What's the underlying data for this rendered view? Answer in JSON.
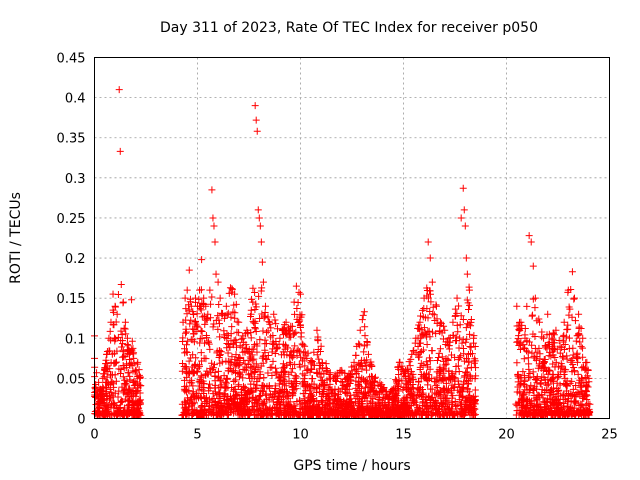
{
  "chart_data": {
    "type": "scatter",
    "title": "Day 311 of 2023, Rate Of TEC Index for receiver p050",
    "xlabel": "GPS time / hours",
    "ylabel": "ROTI / TECUs",
    "xlim": [
      0,
      25
    ],
    "ylim": [
      0,
      0.45
    ],
    "xticks": [
      0,
      5,
      10,
      15,
      20,
      25
    ],
    "xtick_labels": [
      "0",
      "5",
      "10",
      "15",
      "20",
      "25"
    ],
    "yticks": [
      0,
      0.05,
      0.1,
      0.15,
      0.2,
      0.25,
      0.3,
      0.35,
      0.4,
      0.45
    ],
    "ytick_labels": [
      "0",
      "0.05",
      "0.1",
      "0.15",
      "0.2",
      "0.25",
      "0.3",
      "0.35",
      "0.4",
      "0.45"
    ],
    "grid": true,
    "marker": "+",
    "color": "#ff0000",
    "series": [
      {
        "envelope_note": "",
        "points": [
          [
            0.0,
            0.103
          ],
          [
            0.0,
            0.075
          ],
          [
            0.1,
            0.057
          ],
          [
            0.2,
            0.045
          ],
          [
            0.3,
            0.03
          ],
          [
            0.4,
            0.05
          ],
          [
            0.5,
            0.06
          ],
          [
            0.6,
            0.08
          ],
          [
            0.7,
            0.1
          ],
          [
            0.8,
            0.12
          ],
          [
            0.9,
            0.155
          ],
          [
            1.0,
            0.14
          ],
          [
            1.1,
            0.13
          ],
          [
            1.2,
            0.41
          ],
          [
            1.25,
            0.333
          ],
          [
            1.3,
            0.167
          ],
          [
            1.4,
            0.145
          ],
          [
            1.5,
            0.12
          ],
          [
            1.6,
            0.1
          ],
          [
            1.7,
            0.08
          ],
          [
            1.8,
            0.148
          ],
          [
            1.9,
            0.075
          ],
          [
            2.0,
            0.06
          ],
          [
            2.1,
            0.07
          ],
          [
            2.2,
            0.05
          ],
          [
            4.3,
            0.12
          ],
          [
            4.4,
            0.15
          ],
          [
            4.5,
            0.16
          ],
          [
            4.6,
            0.185
          ],
          [
            4.7,
            0.14
          ],
          [
            4.8,
            0.13
          ],
          [
            4.9,
            0.15
          ],
          [
            5.0,
            0.14
          ],
          [
            5.1,
            0.16
          ],
          [
            5.2,
            0.198
          ],
          [
            5.3,
            0.15
          ],
          [
            5.4,
            0.14
          ],
          [
            5.5,
            0.13
          ],
          [
            5.6,
            0.16
          ],
          [
            5.7,
            0.285
          ],
          [
            5.75,
            0.25
          ],
          [
            5.8,
            0.24
          ],
          [
            5.85,
            0.22
          ],
          [
            5.9,
            0.18
          ],
          [
            6.0,
            0.17
          ],
          [
            6.1,
            0.15
          ],
          [
            6.2,
            0.13
          ],
          [
            6.4,
            0.14
          ],
          [
            6.6,
            0.163
          ],
          [
            6.8,
            0.155
          ],
          [
            7.0,
            0.12
          ],
          [
            7.2,
            0.1
          ],
          [
            7.4,
            0.11
          ],
          [
            7.6,
            0.13
          ],
          [
            7.8,
            0.39
          ],
          [
            7.85,
            0.372
          ],
          [
            7.9,
            0.358
          ],
          [
            7.95,
            0.26
          ],
          [
            8.0,
            0.25
          ],
          [
            8.05,
            0.24
          ],
          [
            8.1,
            0.22
          ],
          [
            8.15,
            0.195
          ],
          [
            8.2,
            0.17
          ],
          [
            8.3,
            0.14
          ],
          [
            8.5,
            0.12
          ],
          [
            8.7,
            0.13
          ],
          [
            9.0,
            0.1
          ],
          [
            9.3,
            0.12
          ],
          [
            9.5,
            0.11
          ],
          [
            9.8,
            0.165
          ],
          [
            10.0,
            0.155
          ],
          [
            10.2,
            0.09
          ],
          [
            10.5,
            0.07
          ],
          [
            10.8,
            0.11
          ],
          [
            11.0,
            0.09
          ],
          [
            11.3,
            0.06
          ],
          [
            11.6,
            0.05
          ],
          [
            12.0,
            0.06
          ],
          [
            12.3,
            0.05
          ],
          [
            12.6,
            0.07
          ],
          [
            12.9,
            0.11
          ],
          [
            13.1,
            0.133
          ],
          [
            13.3,
            0.08
          ],
          [
            13.6,
            0.05
          ],
          [
            13.9,
            0.04
          ],
          [
            14.2,
            0.03
          ],
          [
            14.5,
            0.035
          ],
          [
            14.8,
            0.07
          ],
          [
            15.1,
            0.06
          ],
          [
            15.4,
            0.08
          ],
          [
            15.6,
            0.1
          ],
          [
            15.8,
            0.12
          ],
          [
            16.0,
            0.15
          ],
          [
            16.2,
            0.22
          ],
          [
            16.3,
            0.2
          ],
          [
            16.4,
            0.17
          ],
          [
            16.6,
            0.14
          ],
          [
            16.8,
            0.12
          ],
          [
            17.0,
            0.11
          ],
          [
            17.2,
            0.1
          ],
          [
            17.4,
            0.12
          ],
          [
            17.6,
            0.15
          ],
          [
            17.8,
            0.25
          ],
          [
            17.9,
            0.287
          ],
          [
            17.95,
            0.26
          ],
          [
            18.0,
            0.24
          ],
          [
            18.05,
            0.2
          ],
          [
            18.1,
            0.18
          ],
          [
            18.2,
            0.16
          ],
          [
            18.4,
            0.1
          ],
          [
            20.5,
            0.14
          ],
          [
            20.7,
            0.12
          ],
          [
            20.9,
            0.1
          ],
          [
            21.1,
            0.228
          ],
          [
            21.2,
            0.22
          ],
          [
            21.3,
            0.19
          ],
          [
            21.4,
            0.15
          ],
          [
            21.6,
            0.12
          ],
          [
            21.8,
            0.1
          ],
          [
            22.0,
            0.13
          ],
          [
            22.2,
            0.1
          ],
          [
            22.4,
            0.11
          ],
          [
            22.6,
            0.09
          ],
          [
            22.8,
            0.12
          ],
          [
            23.0,
            0.16
          ],
          [
            23.2,
            0.183
          ],
          [
            23.3,
            0.15
          ],
          [
            23.5,
            0.13
          ],
          [
            23.7,
            0.1
          ],
          [
            23.9,
            0.07
          ],
          [
            24.0,
            0.05
          ]
        ]
      }
    ]
  }
}
